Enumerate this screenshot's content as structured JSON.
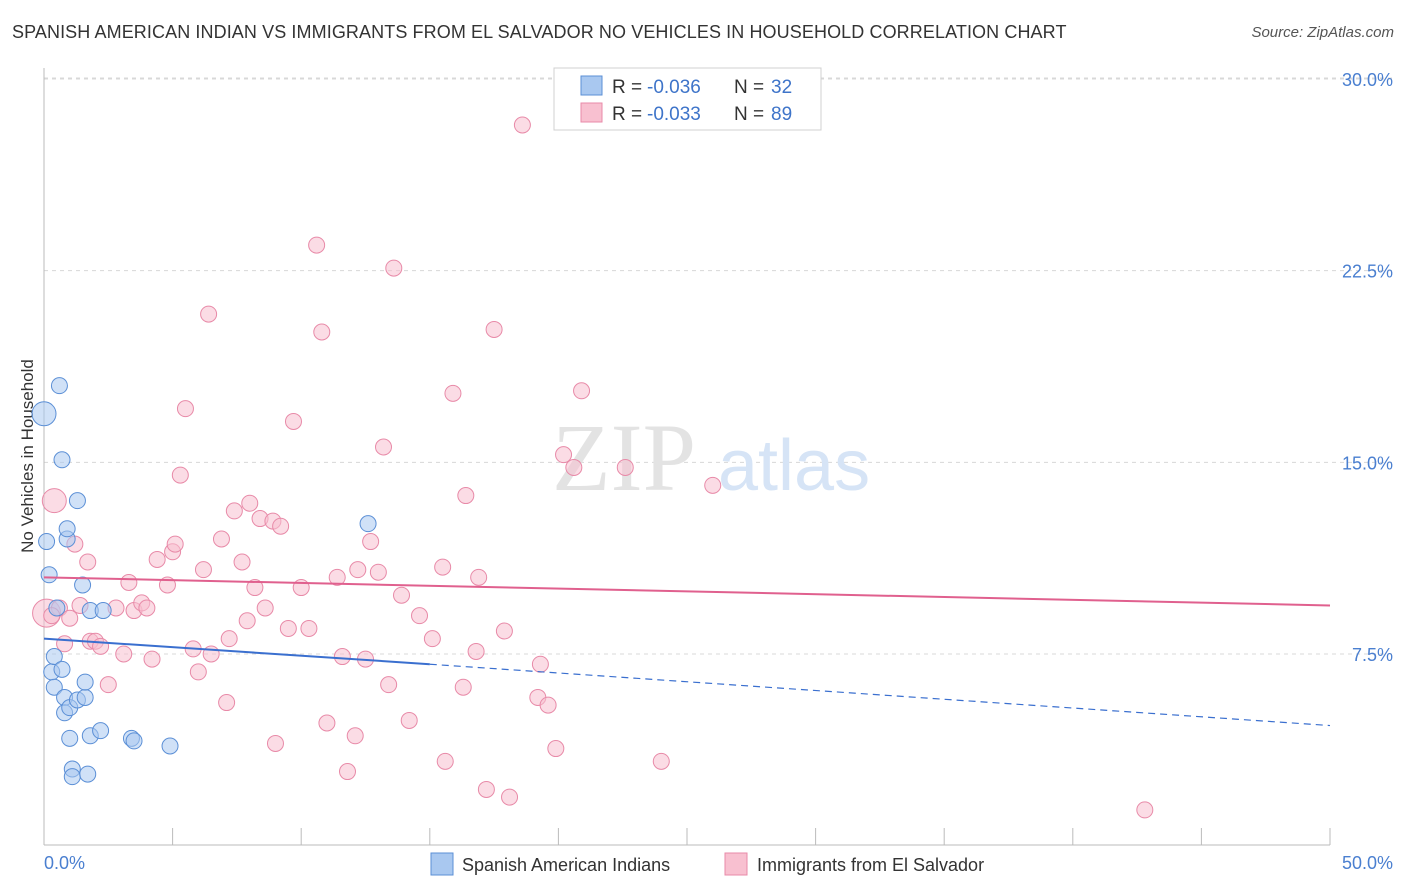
{
  "title": "SPANISH AMERICAN INDIAN VS IMMIGRANTS FROM EL SALVADOR NO VEHICLES IN HOUSEHOLD CORRELATION CHART",
  "source": "Source: ZipAtlas.com",
  "watermark": {
    "zip": "ZIP",
    "atlas": "atlas"
  },
  "colors": {
    "blue_fill": "#a9c8f0",
    "blue_stroke": "#5b8fd6",
    "blue_line": "#3a6fcf",
    "pink_fill": "#f8c0d0",
    "pink_stroke": "#e88aa8",
    "pink_line": "#e0608e",
    "axis_text": "#4a7fd0",
    "grid": "#d8d8d8"
  },
  "legend": {
    "series": [
      {
        "r_label": "R = ",
        "r_value": "-0.036",
        "n_label": "N = ",
        "n_value": "32"
      },
      {
        "r_label": "R = ",
        "r_value": "-0.033",
        "n_label": "N = ",
        "n_value": "89"
      }
    ]
  },
  "chart_data": {
    "type": "scatter",
    "title": "SPANISH AMERICAN INDIAN VS IMMIGRANTS FROM EL SALVADOR NO VEHICLES IN HOUSEHOLD CORRELATION CHART",
    "xlabel": "",
    "ylabel": "No Vehicles in Household",
    "xlim": [
      0,
      50
    ],
    "ylim": [
      0,
      31
    ],
    "x_tick_labels": [
      "0.0%",
      "50.0%"
    ],
    "y_ticks": [
      7.5,
      15.0,
      22.5,
      30.0
    ],
    "y_tick_labels": [
      "7.5%",
      "15.0%",
      "22.5%",
      "30.0%"
    ],
    "series": [
      {
        "name": "Spanish American Indians",
        "color": "blue",
        "trend": {
          "x0": 0,
          "y0": 8.1,
          "x1": 15,
          "y1": 7.1,
          "dash_x1": 50,
          "dash_y1": 4.7
        },
        "points": [
          [
            0.0,
            16.9,
            12
          ],
          [
            0.1,
            11.9,
            8
          ],
          [
            0.2,
            10.6,
            8
          ],
          [
            0.3,
            6.8,
            8
          ],
          [
            0.4,
            6.2,
            8
          ],
          [
            0.4,
            7.4,
            8
          ],
          [
            0.5,
            9.3,
            8
          ],
          [
            0.6,
            18.0,
            8
          ],
          [
            0.7,
            15.1,
            8
          ],
          [
            0.7,
            6.9,
            8
          ],
          [
            0.8,
            5.8,
            8
          ],
          [
            0.8,
            5.2,
            8
          ],
          [
            0.9,
            12.0,
            8
          ],
          [
            0.9,
            12.4,
            8
          ],
          [
            1.0,
            5.4,
            8
          ],
          [
            1.0,
            4.2,
            8
          ],
          [
            1.1,
            3.0,
            8
          ],
          [
            1.1,
            2.7,
            8
          ],
          [
            1.3,
            13.5,
            8
          ],
          [
            1.3,
            5.7,
            8
          ],
          [
            1.5,
            10.2,
            8
          ],
          [
            1.6,
            5.8,
            8
          ],
          [
            1.6,
            6.4,
            8
          ],
          [
            1.7,
            2.8,
            8
          ],
          [
            1.8,
            4.3,
            8
          ],
          [
            1.8,
            9.2,
            8
          ],
          [
            2.2,
            4.5,
            8
          ],
          [
            2.3,
            9.2,
            8
          ],
          [
            3.4,
            4.2,
            8
          ],
          [
            3.5,
            4.1,
            8
          ],
          [
            4.9,
            3.9,
            8
          ],
          [
            12.6,
            12.6,
            8
          ]
        ]
      },
      {
        "name": "Immigrants from El Salvador",
        "color": "pink",
        "trend": {
          "x0": 0,
          "y0": 10.5,
          "x1": 50,
          "y1": 9.4
        },
        "points": [
          [
            0.1,
            9.1,
            14
          ],
          [
            0.4,
            13.5,
            12
          ],
          [
            0.6,
            9.3,
            8
          ],
          [
            0.8,
            7.9,
            8
          ],
          [
            1.0,
            8.9,
            8
          ],
          [
            1.2,
            11.8,
            8
          ],
          [
            1.4,
            9.4,
            8
          ],
          [
            1.7,
            11.1,
            8
          ],
          [
            1.8,
            8.0,
            8
          ],
          [
            2.0,
            8.0,
            8
          ],
          [
            2.2,
            7.8,
            8
          ],
          [
            2.5,
            6.3,
            8
          ],
          [
            2.8,
            9.3,
            8
          ],
          [
            3.1,
            7.5,
            8
          ],
          [
            3.3,
            10.3,
            8
          ],
          [
            3.5,
            9.2,
            8
          ],
          [
            3.8,
            9.5,
            8
          ],
          [
            4.0,
            9.3,
            8
          ],
          [
            4.2,
            7.3,
            8
          ],
          [
            4.4,
            11.2,
            8
          ],
          [
            4.8,
            10.2,
            8
          ],
          [
            5.0,
            11.5,
            8
          ],
          [
            5.1,
            11.8,
            8
          ],
          [
            5.3,
            14.5,
            8
          ],
          [
            5.5,
            17.1,
            8
          ],
          [
            5.8,
            7.7,
            8
          ],
          [
            6.0,
            6.8,
            8
          ],
          [
            6.2,
            10.8,
            8
          ],
          [
            6.4,
            20.8,
            8
          ],
          [
            6.5,
            7.5,
            8
          ],
          [
            6.9,
            12.0,
            8
          ],
          [
            7.1,
            5.6,
            8
          ],
          [
            7.2,
            8.1,
            8
          ],
          [
            7.4,
            13.1,
            8
          ],
          [
            7.7,
            11.1,
            8
          ],
          [
            7.9,
            8.8,
            8
          ],
          [
            8.0,
            13.4,
            8
          ],
          [
            8.2,
            10.1,
            8
          ],
          [
            8.4,
            12.8,
            8
          ],
          [
            8.6,
            9.3,
            8
          ],
          [
            8.9,
            12.7,
            8
          ],
          [
            9.0,
            4.0,
            8
          ],
          [
            9.2,
            12.5,
            8
          ],
          [
            9.5,
            8.5,
            8
          ],
          [
            9.7,
            16.6,
            8
          ],
          [
            10.0,
            10.1,
            8
          ],
          [
            10.3,
            8.5,
            8
          ],
          [
            10.6,
            23.5,
            8
          ],
          [
            10.8,
            20.1,
            8
          ],
          [
            11.0,
            4.8,
            8
          ],
          [
            11.4,
            10.5,
            8
          ],
          [
            11.6,
            7.4,
            8
          ],
          [
            11.8,
            2.9,
            8
          ],
          [
            12.1,
            4.3,
            8
          ],
          [
            12.2,
            10.8,
            8
          ],
          [
            12.5,
            7.3,
            8
          ],
          [
            12.7,
            11.9,
            8
          ],
          [
            13.0,
            10.7,
            8
          ],
          [
            13.2,
            15.6,
            8
          ],
          [
            13.4,
            6.3,
            8
          ],
          [
            13.6,
            22.6,
            8
          ],
          [
            13.9,
            9.8,
            8
          ],
          [
            14.2,
            4.9,
            8
          ],
          [
            14.6,
            9.0,
            8
          ],
          [
            15.1,
            8.1,
            8
          ],
          [
            15.5,
            10.9,
            8
          ],
          [
            15.6,
            3.3,
            8
          ],
          [
            15.9,
            17.7,
            8
          ],
          [
            16.3,
            6.2,
            8
          ],
          [
            16.4,
            13.7,
            8
          ],
          [
            16.8,
            7.6,
            8
          ],
          [
            16.9,
            10.5,
            8
          ],
          [
            17.2,
            2.2,
            8
          ],
          [
            17.5,
            20.2,
            8
          ],
          [
            17.9,
            8.4,
            8
          ],
          [
            18.1,
            1.9,
            8
          ],
          [
            18.6,
            28.2,
            8
          ],
          [
            19.2,
            5.8,
            8
          ],
          [
            19.3,
            7.1,
            8
          ],
          [
            19.6,
            5.5,
            8
          ],
          [
            19.9,
            3.8,
            8
          ],
          [
            20.2,
            15.3,
            8
          ],
          [
            20.6,
            14.8,
            8
          ],
          [
            20.9,
            17.8,
            8
          ],
          [
            22.6,
            14.8,
            8
          ],
          [
            24.0,
            3.3,
            8
          ],
          [
            26.0,
            14.1,
            8
          ],
          [
            42.8,
            1.4,
            8
          ],
          [
            0.3,
            9.0,
            8
          ]
        ]
      }
    ],
    "legend_position": "top-center",
    "grid": true
  },
  "bottom_legend": [
    "Spanish American Indians",
    "Immigrants from El Salvador"
  ],
  "x_axis_labels": {
    "left": "0.0%",
    "right": "50.0%"
  }
}
